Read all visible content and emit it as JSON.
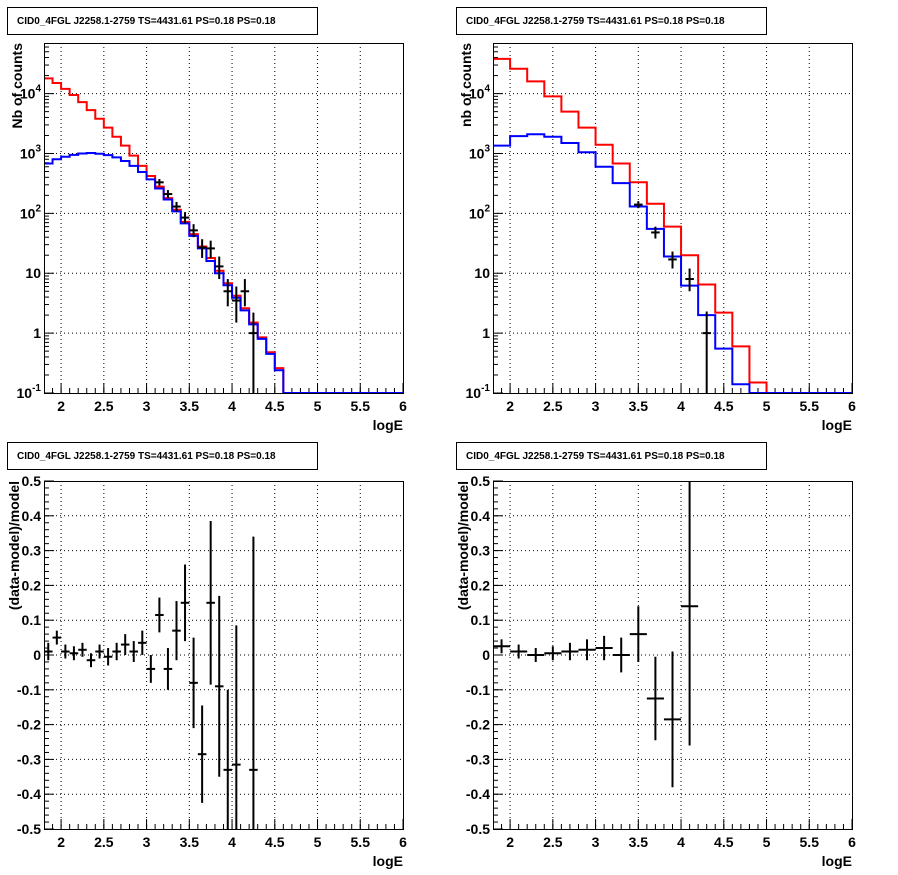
{
  "colors": {
    "model": "#ff0000",
    "component": "#0000ff",
    "data": "#000000"
  },
  "chart_data": [
    {
      "type": "line",
      "title": "CID0_4FGL J2258.1-2759 TS=4431.61 PS=0.18 PS=0.18",
      "xlabel": "logE",
      "ylabel": "Nb of counts",
      "xlim": [
        1.8,
        6
      ],
      "ylim": [
        0.1,
        70000
      ],
      "yscale": "log",
      "grid": true,
      "xticks": [
        "2",
        "2.5",
        "3",
        "3.5",
        "4",
        "4.5",
        "5",
        "5.5",
        "6"
      ],
      "yticks": [
        "10^-1",
        "1",
        "10",
        "10^2",
        "10^3",
        "10^4"
      ],
      "bin_edges": [
        1.8,
        1.9,
        2.0,
        2.1,
        2.2,
        2.3,
        2.4,
        2.5,
        2.6,
        2.7,
        2.8,
        2.9,
        3.0,
        3.1,
        3.2,
        3.3,
        3.4,
        3.5,
        3.6,
        3.7,
        3.8,
        3.9,
        4.0,
        4.1,
        4.2,
        4.3,
        4.4,
        4.5,
        4.6,
        4.7,
        4.8,
        4.9,
        5.0,
        5.1,
        5.2,
        5.3,
        5.4,
        5.5,
        5.6,
        5.7,
        5.8,
        5.9,
        6.0
      ],
      "series": [
        {
          "color": "#ff0000",
          "style": "step",
          "values": [
            18000,
            15000,
            12000,
            9500,
            7200,
            5300,
            3800,
            2700,
            1900,
            1350,
            920,
            620,
            420,
            280,
            180,
            115,
            72,
            45,
            28,
            18,
            11,
            6.8,
            4.2,
            2.6,
            1.5,
            0.85,
            0.48,
            0.26,
            0.1,
            0.1,
            0.1,
            0.1,
            0.1,
            0.1,
            0.1,
            0.1,
            0.1,
            0.1,
            0.1,
            0.1,
            0.1,
            0.1
          ]
        },
        {
          "color": "#0000ff",
          "style": "step",
          "values": [
            680,
            800,
            880,
            950,
            1000,
            1020,
            990,
            940,
            860,
            750,
            620,
            490,
            370,
            260,
            170,
            108,
            68,
            42,
            26,
            16,
            10,
            6.3,
            3.9,
            2.4,
            1.4,
            0.8,
            0.45,
            0.24,
            0.1,
            0.1,
            0.1,
            0.1,
            0.1,
            0.1,
            0.1,
            0.1,
            0.1,
            0.1,
            0.1,
            0.1,
            0.1,
            0.1
          ]
        },
        {
          "color": "#000000",
          "style": "errorbar",
          "points": [
            {
              "x": 3.15,
              "y": 330,
              "lo": 290,
              "hi": 375
            },
            {
              "x": 3.25,
              "y": 210,
              "lo": 180,
              "hi": 245
            },
            {
              "x": 3.35,
              "y": 130,
              "lo": 108,
              "hi": 155
            },
            {
              "x": 3.45,
              "y": 85,
              "lo": 68,
              "hi": 105
            },
            {
              "x": 3.55,
              "y": 52,
              "lo": 40,
              "hi": 66
            },
            {
              "x": 3.65,
              "y": 27,
              "lo": 18,
              "hi": 37
            },
            {
              "x": 3.75,
              "y": 26,
              "lo": 18,
              "hi": 35
            },
            {
              "x": 3.85,
              "y": 13,
              "lo": 8,
              "hi": 19
            },
            {
              "x": 3.95,
              "y": 5,
              "lo": 2.8,
              "hi": 8
            },
            {
              "x": 4.05,
              "y": 3.5,
              "lo": 1.5,
              "hi": 6
            },
            {
              "x": 4.15,
              "y": 5,
              "lo": 2.8,
              "hi": 8
            },
            {
              "x": 4.25,
              "y": 1,
              "lo": 0.1,
              "hi": 2.2
            }
          ]
        }
      ]
    },
    {
      "type": "line",
      "title": "CID0_4FGL J2258.1-2759 TS=4431.61 PS=0.18 PS=0.18",
      "xlabel": "logE",
      "ylabel": "nb of counts",
      "xlim": [
        1.8,
        6
      ],
      "ylim": [
        0.1,
        70000
      ],
      "yscale": "log",
      "grid": true,
      "xticks": [
        "2",
        "2.5",
        "3",
        "3.5",
        "4",
        "4.5",
        "5",
        "5.5",
        "6"
      ],
      "yticks": [
        "10^-1",
        "1",
        "10",
        "10^2",
        "10^3",
        "10^4"
      ],
      "bin_edges": [
        1.8,
        2.0,
        2.2,
        2.4,
        2.6,
        2.8,
        3.0,
        3.2,
        3.4,
        3.6,
        3.8,
        4.0,
        4.2,
        4.4,
        4.6,
        4.8,
        5.0,
        5.2,
        5.4,
        5.6,
        5.8,
        6.0
      ],
      "series": [
        {
          "color": "#ff0000",
          "style": "step",
          "values": [
            38000,
            26000,
            16000,
            9000,
            5000,
            2700,
            1400,
            680,
            330,
            145,
            60,
            20,
            6.5,
            2.2,
            0.6,
            0.15,
            0.1,
            0.1,
            0.1,
            0.1,
            0.1
          ]
        },
        {
          "color": "#0000ff",
          "style": "step",
          "values": [
            1350,
            1950,
            2100,
            1900,
            1500,
            1050,
            600,
            320,
            130,
            55,
            19,
            6.2,
            2.0,
            0.55,
            0.14,
            0.1,
            0.1,
            0.1,
            0.1,
            0.1,
            0.1
          ]
        },
        {
          "color": "#000000",
          "style": "errorbar",
          "points": [
            {
              "x": 3.5,
              "y": 140,
              "lo": 122,
              "hi": 160
            },
            {
              "x": 3.7,
              "y": 48,
              "lo": 38,
              "hi": 60
            },
            {
              "x": 3.9,
              "y": 17,
              "lo": 12,
              "hi": 23
            },
            {
              "x": 4.1,
              "y": 8,
              "lo": 5,
              "hi": 12
            },
            {
              "x": 4.3,
              "y": 1,
              "lo": 0.1,
              "hi": 2.3
            }
          ]
        }
      ]
    },
    {
      "type": "scatter",
      "title": "CID0_4FGL J2258.1-2759 TS=4431.61 PS=0.18 PS=0.18",
      "xlabel": "logE",
      "ylabel": "(data-model)/model",
      "xlim": [
        1.8,
        6
      ],
      "ylim": [
        -0.5,
        0.5
      ],
      "yscale": "linear",
      "grid": true,
      "xticks": [
        "2",
        "2.5",
        "3",
        "3.5",
        "4",
        "4.5",
        "5",
        "5.5",
        "6"
      ],
      "yticks": [
        "-0.5",
        "-0.4",
        "-0.3",
        "-0.2",
        "-0.1",
        "0",
        "0.1",
        "0.2",
        "0.3",
        "0.4",
        "0.5"
      ],
      "xhalfwidth": 0.05,
      "series": [
        {
          "color": "#000000",
          "style": "errorbar",
          "points": [
            {
              "x": 1.85,
              "y": 0.01,
              "err": 0.025
            },
            {
              "x": 1.95,
              "y": 0.05,
              "err": 0.02
            },
            {
              "x": 2.05,
              "y": 0.01,
              "err": 0.02
            },
            {
              "x": 2.15,
              "y": 0.005,
              "err": 0.02
            },
            {
              "x": 2.25,
              "y": 0.015,
              "err": 0.02
            },
            {
              "x": 2.35,
              "y": -0.015,
              "err": 0.02
            },
            {
              "x": 2.45,
              "y": 0.01,
              "err": 0.02
            },
            {
              "x": 2.55,
              "y": -0.005,
              "err": 0.025
            },
            {
              "x": 2.65,
              "y": 0.01,
              "err": 0.025
            },
            {
              "x": 2.75,
              "y": 0.03,
              "err": 0.03
            },
            {
              "x": 2.85,
              "y": 0.01,
              "err": 0.03
            },
            {
              "x": 2.95,
              "y": 0.035,
              "err": 0.035
            },
            {
              "x": 3.05,
              "y": -0.04,
              "err": 0.04
            },
            {
              "x": 3.15,
              "y": 0.115,
              "err": 0.05
            },
            {
              "x": 3.25,
              "y": -0.04,
              "err": 0.06
            },
            {
              "x": 3.35,
              "y": 0.07,
              "err": 0.085
            },
            {
              "x": 3.45,
              "y": 0.15,
              "err": 0.11
            },
            {
              "x": 3.55,
              "y": -0.08,
              "err": 0.13
            },
            {
              "x": 3.65,
              "y": -0.285,
              "err": 0.14
            },
            {
              "x": 3.75,
              "y": 0.15,
              "err": 0.235
            },
            {
              "x": 3.85,
              "y": -0.09,
              "err": 0.26
            },
            {
              "x": 3.95,
              "y": -0.33,
              "err": 0.23
            },
            {
              "x": 4.05,
              "y": -0.315,
              "err": 0.4
            },
            {
              "x": 4.25,
              "y": -0.33,
              "err": 0.67
            }
          ]
        }
      ]
    },
    {
      "type": "scatter",
      "title": "CID0_4FGL J2258.1-2759 TS=4431.61 PS=0.18 PS=0.18",
      "xlabel": "logE",
      "ylabel": "(data-model)/model",
      "xlim": [
        1.8,
        6
      ],
      "ylim": [
        -0.5,
        0.5
      ],
      "yscale": "linear",
      "grid": true,
      "xticks": [
        "2",
        "2.5",
        "3",
        "3.5",
        "4",
        "4.5",
        "5",
        "5.5",
        "6"
      ],
      "yticks": [
        "-0.5",
        "-0.4",
        "-0.3",
        "-0.2",
        "-0.1",
        "0",
        "0.1",
        "0.2",
        "0.3",
        "0.4",
        "0.5"
      ],
      "xhalfwidth": 0.1,
      "series": [
        {
          "color": "#000000",
          "style": "errorbar",
          "points": [
            {
              "x": 1.9,
              "y": 0.025,
              "err": 0.02
            },
            {
              "x": 2.1,
              "y": 0.01,
              "err": 0.02
            },
            {
              "x": 2.3,
              "y": 0.0,
              "err": 0.02
            },
            {
              "x": 2.5,
              "y": 0.005,
              "err": 0.02
            },
            {
              "x": 2.7,
              "y": 0.01,
              "err": 0.025
            },
            {
              "x": 2.9,
              "y": 0.015,
              "err": 0.03
            },
            {
              "x": 3.1,
              "y": 0.02,
              "err": 0.035
            },
            {
              "x": 3.3,
              "y": 0.0,
              "err": 0.05
            },
            {
              "x": 3.5,
              "y": 0.06,
              "err": 0.08
            },
            {
              "x": 3.7,
              "y": -0.125,
              "err": 0.12
            },
            {
              "x": 3.9,
              "y": -0.185,
              "err": 0.195
            },
            {
              "x": 4.1,
              "y": 0.14,
              "err": 0.4
            }
          ]
        }
      ]
    }
  ]
}
